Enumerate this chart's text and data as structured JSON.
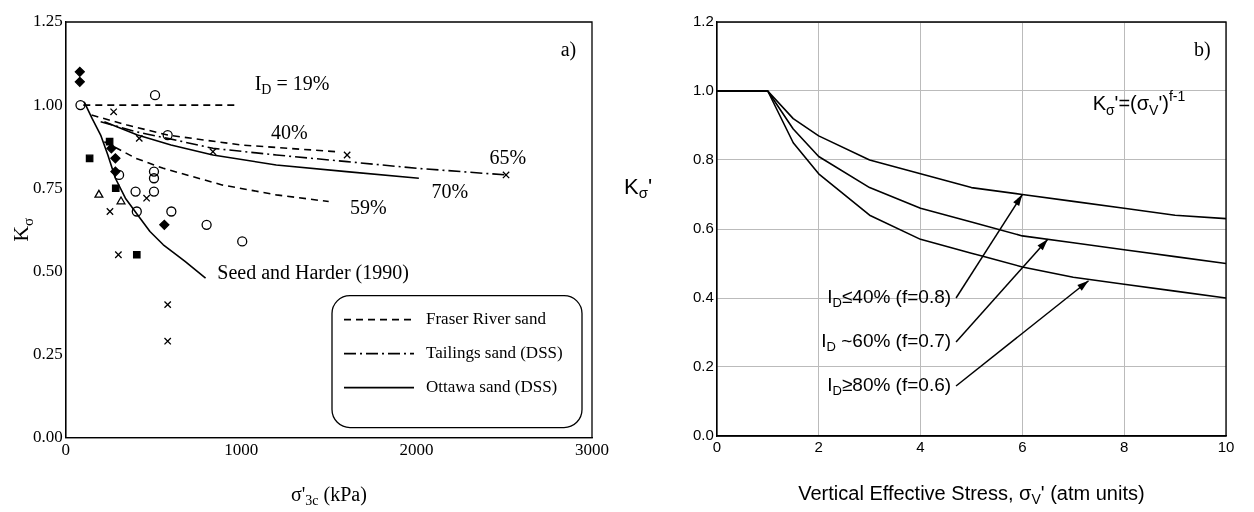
{
  "chart_data": [
    {
      "type": "scatter",
      "xlabel": "σ'$_{3c}$ (kPa)",
      "ylabel": "K$_{σ}$",
      "xlim": [
        0,
        3000
      ],
      "ylim": [
        0,
        1.25
      ],
      "xticks": [
        0,
        1000,
        2000,
        3000
      ],
      "yticks": [
        {
          "value": 0,
          "label": "0.00"
        },
        {
          "value": 0.25,
          "label": "0.25"
        },
        {
          "value": 0.5,
          "label": "0.50"
        },
        {
          "value": 0.75,
          "label": "0.75"
        },
        {
          "value": 1,
          "label": "1.00"
        },
        {
          "value": 1.25,
          "label": "1.25"
        }
      ],
      "grid": false,
      "legend": "bottom right",
      "annotations": [
        "a)",
        "I$_{D}$ = 19%",
        "40%",
        "59%",
        "65%",
        "70%",
        "Seed and Harder (1990)"
      ],
      "series": [
        {
          "name": "Fraser River sand",
          "type": "line",
          "line_style": "dashed",
          "color": "#000000",
          "x": [
            100,
            400,
            700,
            975
          ],
          "values": [
            1.0,
            1.0,
            1.0,
            1.0
          ]
        },
        {
          "type": "line",
          "line_style": "dashed",
          "color": "#000000",
          "x": [
            147,
            350,
            581,
            1000,
            1541
          ],
          "values": [
            0.97,
            0.94,
            0.91,
            0.88,
            0.86
          ]
        },
        {
          "type": "line",
          "line_style": "dashed",
          "color": "#000000",
          "x": [
            220,
            400,
            556,
            891,
            1200,
            1499
          ],
          "values": [
            0.89,
            0.84,
            0.81,
            0.76,
            0.73,
            0.71
          ]
        },
        {
          "name": "Tailings sand (DSS)",
          "type": "line",
          "line_style": "dashdot",
          "color": "#000000",
          "x": [
            199,
            400,
            581,
            839,
            1200,
            1604,
            2000,
            2510
          ],
          "values": [
            0.95,
            0.92,
            0.9,
            0.87,
            0.85,
            0.83,
            0.81,
            0.79
          ]
        },
        {
          "name": "Ottawa sand (DSS)",
          "type": "line",
          "line_style": "solid",
          "color": "#000000",
          "x": [
            220,
            409,
            600,
            839,
            1200,
            1600,
            2013
          ],
          "values": [
            0.95,
            0.91,
            0.88,
            0.85,
            0.82,
            0.8,
            0.78
          ]
        },
        {
          "type": "line",
          "line_style": "solid",
          "color": "#000000",
          "x": [
            105,
            150,
            199,
            240,
            283,
            340,
            409,
            480,
            556,
            680,
            797
          ],
          "values": [
            1.01,
            0.96,
            0.91,
            0.85,
            0.78,
            0.72,
            0.67,
            0.62,
            0.58,
            0.53,
            0.48
          ]
        },
        {
          "type": "scatter",
          "marker": "diamond",
          "color": "#000000",
          "x": [
            80,
            80,
            260,
            283,
            283,
            562
          ],
          "values": [
            1.1,
            1.07,
            0.87,
            0.84,
            0.8,
            0.64
          ]
        },
        {
          "type": "scatter",
          "marker": "square",
          "color": "#000000",
          "x": [
            136,
            250,
            285,
            405
          ],
          "values": [
            0.84,
            0.89,
            0.75,
            0.55
          ]
        },
        {
          "type": "scatter",
          "marker": "circle",
          "color": "#000000",
          "x": [
            84,
            304,
            398,
            405,
            602,
            803,
            1006,
            509,
            503,
            503,
            503,
            581
          ],
          "values": [
            1.0,
            0.79,
            0.74,
            0.68,
            0.68,
            0.64,
            0.59,
            1.03,
            0.8,
            0.78,
            0.74,
            0.91
          ]
        },
        {
          "type": "scatter",
          "marker": "cross",
          "color": "#000000",
          "x": [
            581,
            581,
            273,
            419,
            839,
            1604,
            2510,
            252,
            300,
            461
          ],
          "values": [
            0.4,
            0.29,
            0.98,
            0.9,
            0.86,
            0.85,
            0.79,
            0.68,
            0.55,
            0.72
          ]
        },
        {
          "type": "scatter",
          "marker": "triangle",
          "color": "#000000",
          "x": [
            189,
            315
          ],
          "values": [
            0.73,
            0.71
          ]
        }
      ]
    },
    {
      "type": "line",
      "xlabel": "Vertical Effective Stress, σ$_{V}$' (atm units)",
      "ylabel": "K$_{σ}$'",
      "xlim": [
        0,
        10
      ],
      "ylim": [
        0,
        1.2
      ],
      "xticks": [
        0,
        2,
        4,
        6,
        8,
        10
      ],
      "yticks": [
        {
          "value": 0,
          "label": "0.0"
        },
        {
          "value": 0.2,
          "label": "0.2"
        },
        {
          "value": 0.4,
          "label": "0.4"
        },
        {
          "value": 0.6,
          "label": "0.6"
        },
        {
          "value": 0.8,
          "label": "0.8"
        },
        {
          "value": 1,
          "label": "1.0"
        },
        {
          "value": 1.2,
          "label": "1.2"
        }
      ],
      "grid": true,
      "legend": false,
      "annotations": [
        "b)",
        "K$_{σ}$'=(σ$_{V}$')$^{f-1}$",
        {
          "text": "I$_{D}$≤40% (f=0.8)",
          "x": 6,
          "y": 0.7
        },
        {
          "text": "I$_{D}$ ~60% (f=0.7)",
          "x": 6.5,
          "y": 0.57
        },
        {
          "text": "I$_{D}$≥80% (f=0.6)",
          "x": 7.3,
          "y": 0.45
        }
      ],
      "x": [
        0,
        1,
        1.5,
        2,
        3,
        4,
        5,
        6,
        7,
        8,
        9,
        10
      ],
      "series": [
        {
          "color": "#000000",
          "values": [
            1,
            1,
            0.92,
            0.87,
            0.8,
            0.76,
            0.72,
            0.7,
            0.68,
            0.66,
            0.64,
            0.63
          ]
        },
        {
          "color": "#000000",
          "values": [
            1,
            1,
            0.89,
            0.81,
            0.72,
            0.66,
            0.62,
            0.58,
            0.56,
            0.54,
            0.52,
            0.5
          ]
        },
        {
          "color": "#000000",
          "values": [
            1,
            1,
            0.85,
            0.76,
            0.64,
            0.57,
            0.53,
            0.49,
            0.46,
            0.44,
            0.42,
            0.4
          ]
        }
      ]
    }
  ]
}
